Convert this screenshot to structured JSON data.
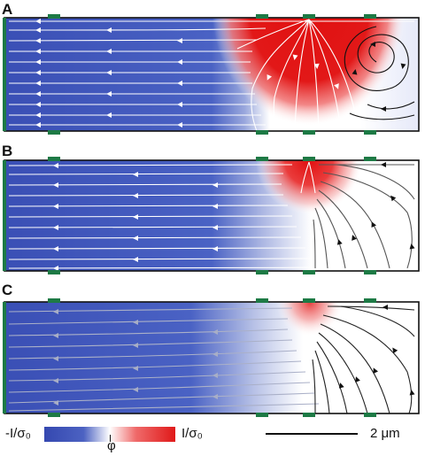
{
  "panels": [
    {
      "letter": "A",
      "red_strength": 1.0,
      "black_cell": true
    },
    {
      "letter": "B",
      "red_strength": 0.75,
      "black_cell": false
    },
    {
      "letter": "C",
      "red_strength": 0.35,
      "black_cell": false
    }
  ],
  "colorbar": {
    "min_label": "-I/σ₀",
    "max_label": "I/σ₀",
    "center_label": "φ",
    "colors": {
      "negative": "#3548b0",
      "zero": "#ffffff",
      "positive": "#e01919"
    }
  },
  "scale_bar": {
    "label": "2 μm"
  },
  "colors": {
    "electrode": "#1d7a45",
    "border": "#111111",
    "streamline_white": "#ffffff",
    "streamline_black": "#111111"
  }
}
